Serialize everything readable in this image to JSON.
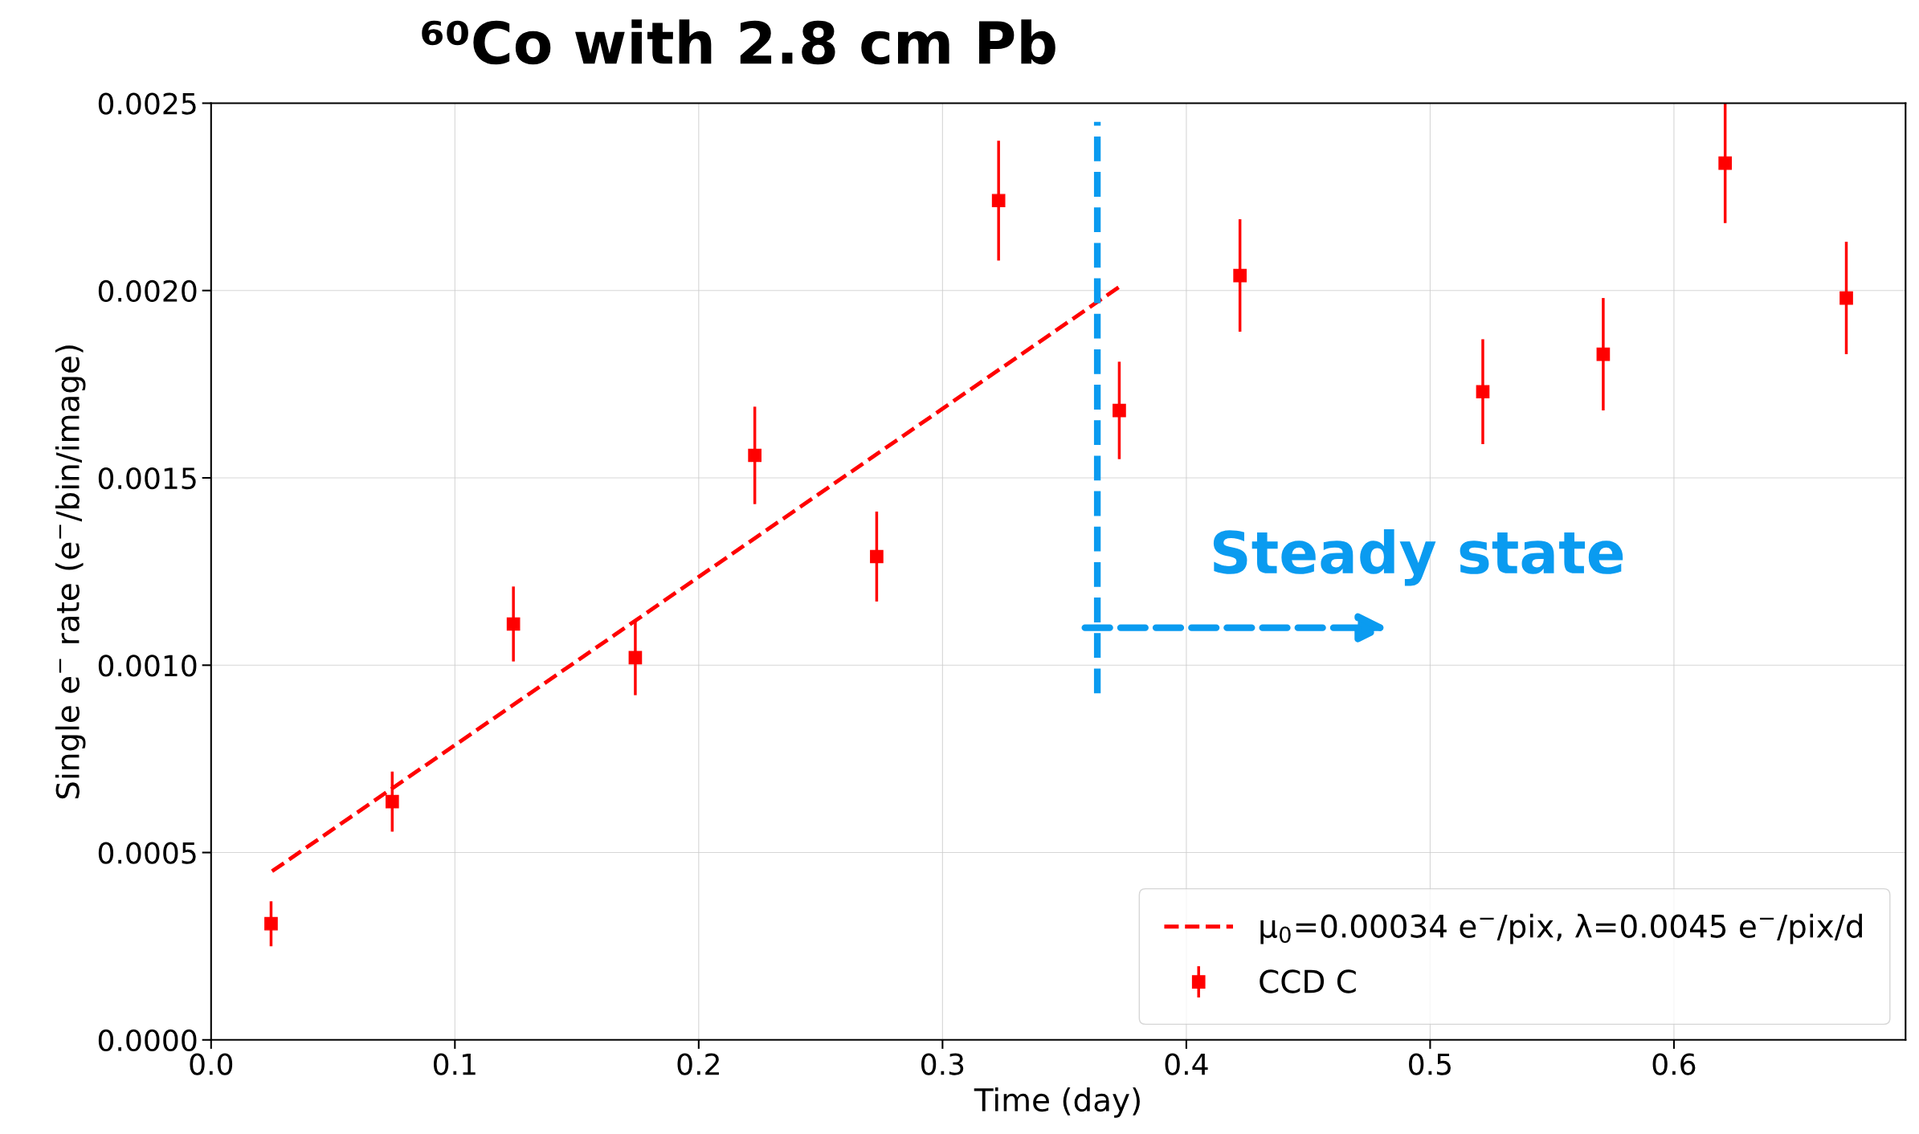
{
  "chart_data": {
    "type": "scatter",
    "title": "⁶⁰Co with 2.8 cm Pb",
    "xlabel": "Time (day)",
    "ylabel": "Single e$^{−}$ rate (e$^{−}$/bin/image)",
    "series": [
      {
        "type": "line",
        "name": "μ$_{0}$=0.00034 e$^{−}$/pix, λ=0.0045 e$^{−}$/pix/d",
        "color": "#ff0000",
        "line_style": "dashed",
        "marker": "none",
        "x": [
          0.025,
          0.3725
        ],
        "values": [
          0.00045,
          0.00201
        ]
      },
      {
        "name": "CCD C",
        "color": "#ff0000",
        "marker": "square",
        "x": [
          0.0246,
          0.0743,
          0.124,
          0.174,
          0.223,
          0.273,
          0.323,
          0.3725,
          0.422,
          0.5216,
          0.571,
          0.621,
          0.6707
        ],
        "values": [
          0.00031,
          0.000636,
          0.00111,
          0.00102,
          0.00156,
          0.00129,
          0.00224,
          0.00168,
          0.00204,
          0.00173,
          0.00183,
          0.00234,
          0.00198
        ],
        "errors": [
          6e-05,
          8e-05,
          0.0001,
          0.0001,
          0.00013,
          0.00012,
          0.00016,
          0.00013,
          0.00015,
          0.00014,
          0.00015,
          0.00016,
          0.00015
        ]
      }
    ],
    "ref_lines": [
      {
        "axis": "x",
        "value": 0.3635,
        "color": "#0a9bf0",
        "line_style": "dashed"
      }
    ],
    "annotations": [
      "Steady state"
    ],
    "xlim": [
      0.0,
      0.695
    ],
    "ylim": [
      0.0,
      0.0025
    ],
    "xticks": [
      {
        "value": 0.0,
        "label": "0.0"
      },
      0.1,
      0.2,
      0.3,
      0.4,
      0.5,
      0.6
    ],
    "yticks": [
      {
        "value": 0.0,
        "label": "0.0000"
      },
      {
        "value": 0.0005,
        "label": "0.0005"
      },
      {
        "value": 0.001,
        "label": "0.0010"
      },
      {
        "value": 0.0015,
        "label": "0.0015"
      },
      {
        "value": 0.002,
        "label": "0.0020"
      },
      {
        "value": 0.0025,
        "label": "0.0025"
      }
    ],
    "grid": true,
    "legend": "bottom right"
  }
}
